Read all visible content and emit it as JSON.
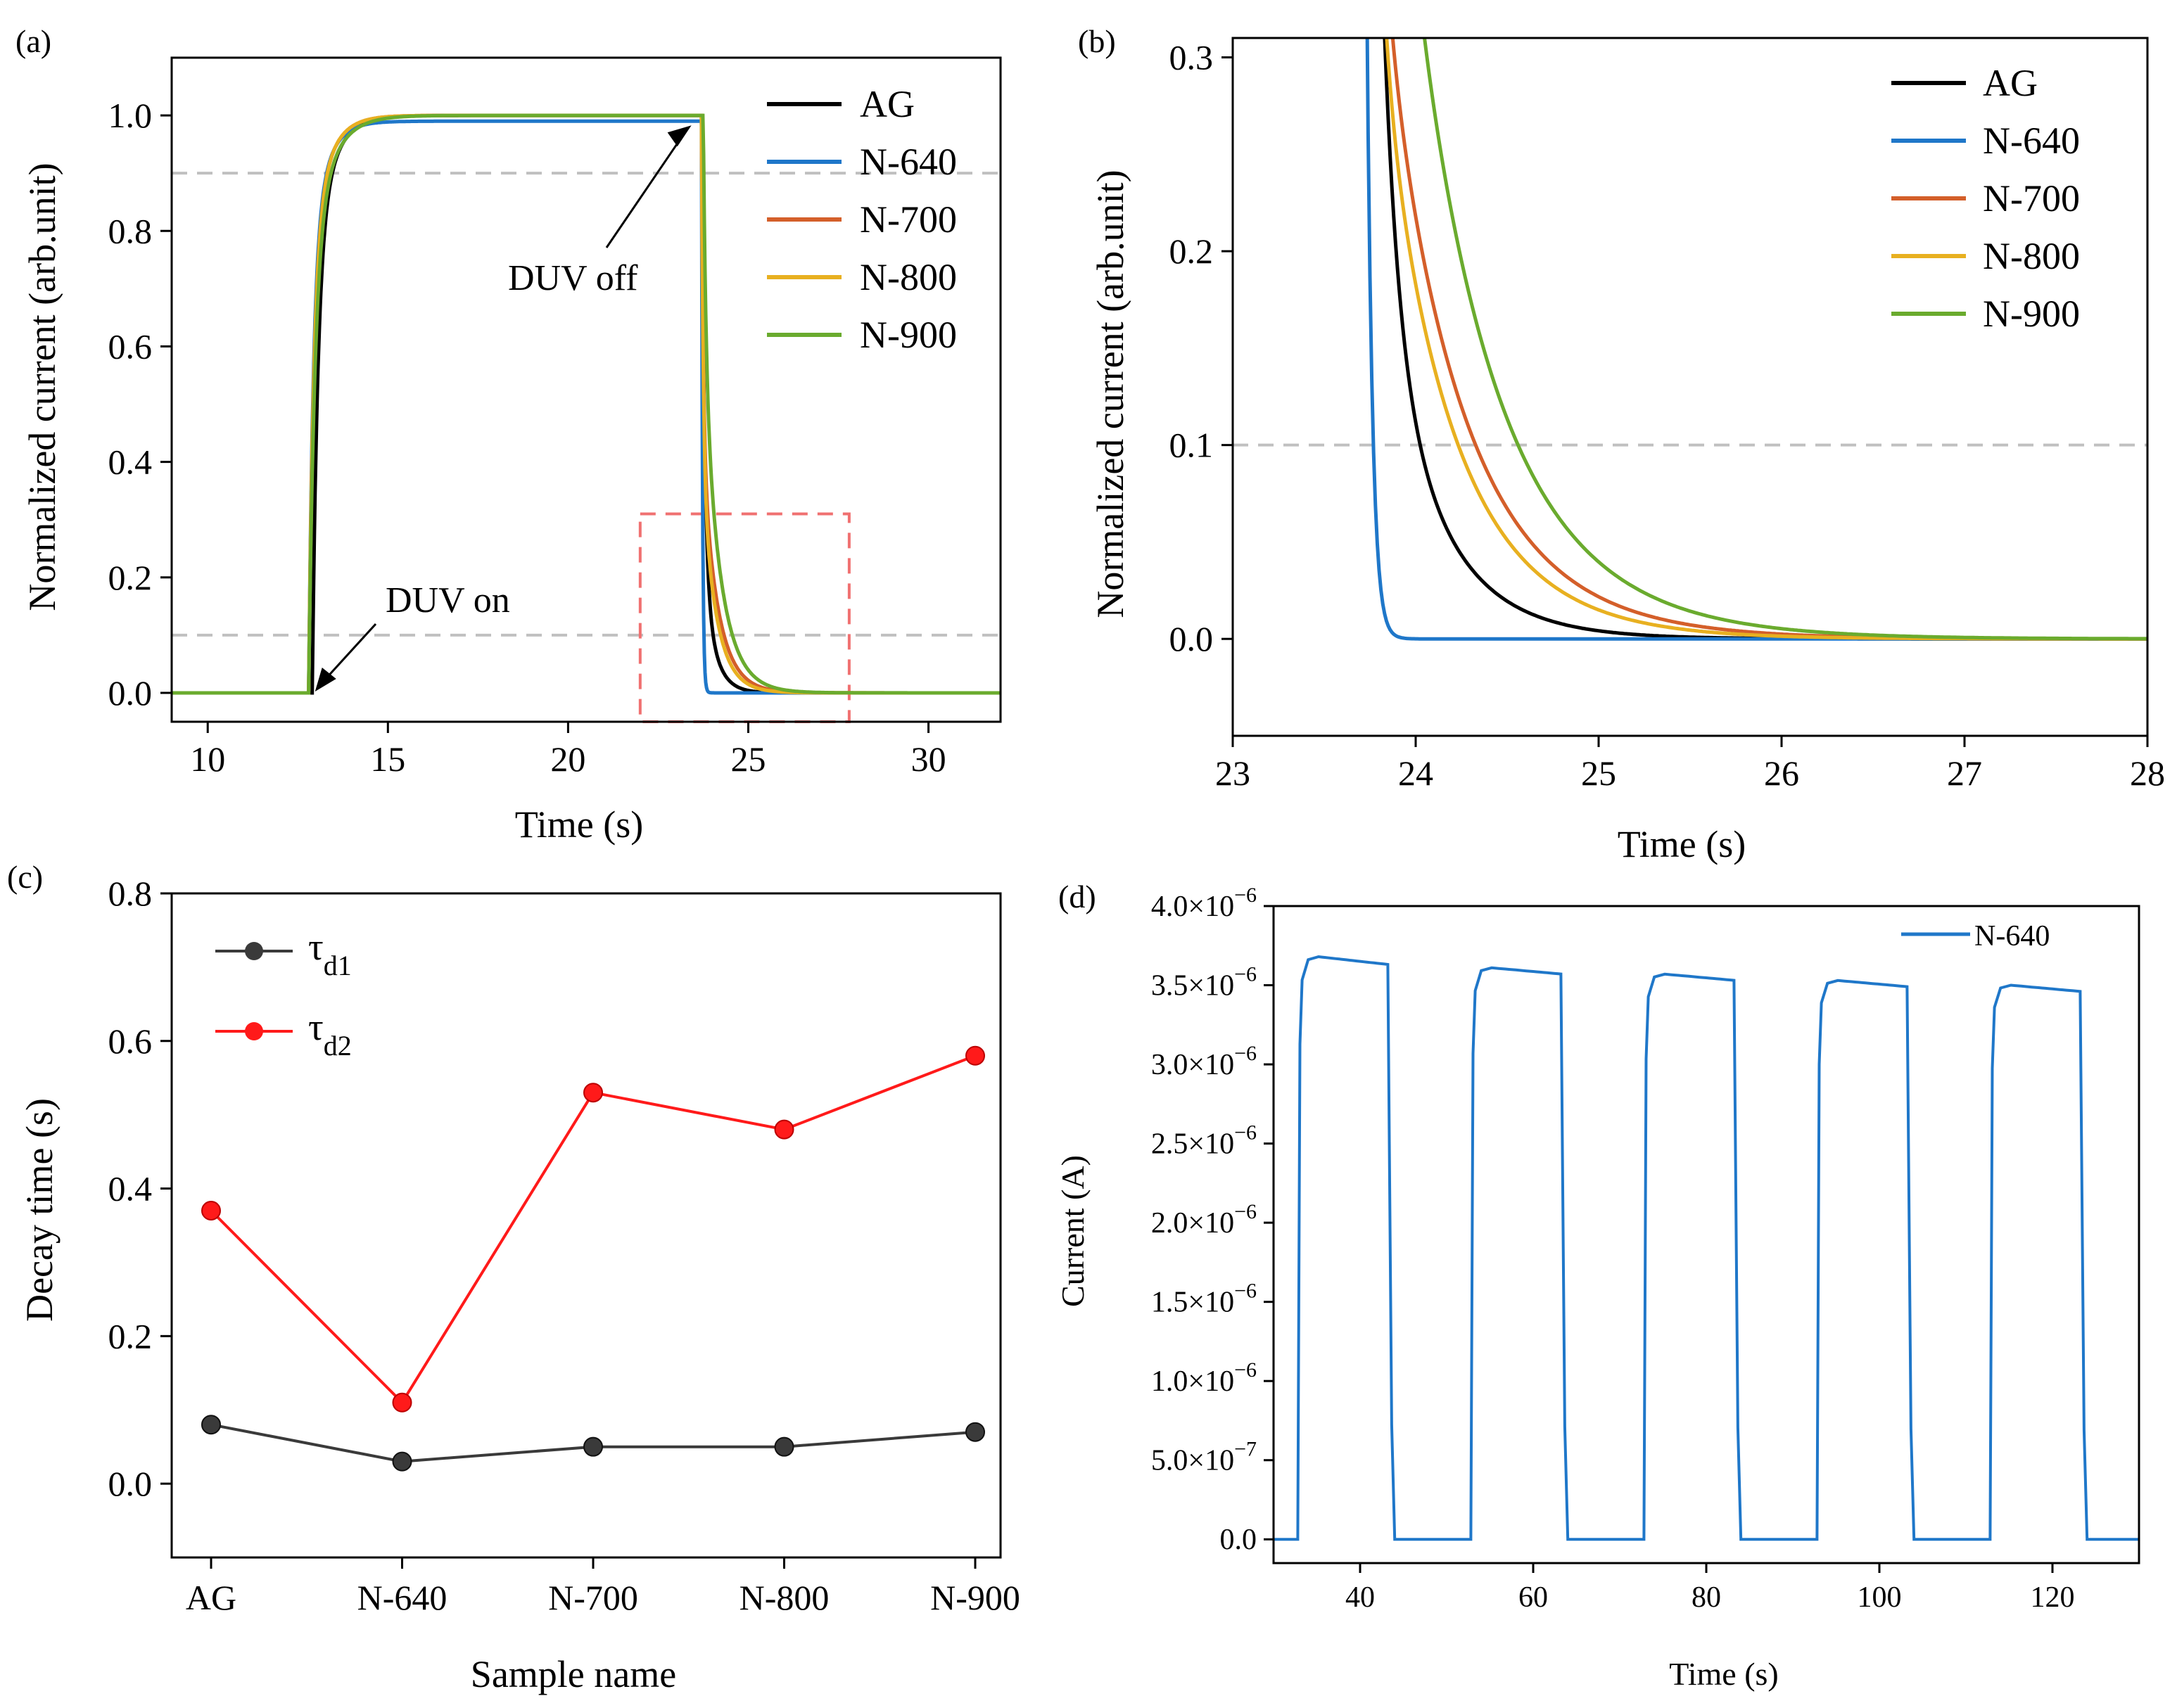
{
  "chart_data": [
    {
      "panel": "(a)",
      "type": "line",
      "xlabel": "Time (s)",
      "ylabel": "Normalized current (arb.unit)",
      "xlim": [
        9,
        32
      ],
      "ylim": [
        -0.05,
        1.1
      ],
      "xticks": [
        "10",
        "15",
        "20",
        "25",
        "30"
      ],
      "yticks": [
        "0.0",
        "0.2",
        "0.4",
        "0.6",
        "0.8",
        "1.0"
      ],
      "reference_lines": [
        0.1,
        0.9
      ],
      "annotations": [
        {
          "text": "DUV on",
          "x": 12.9,
          "y": 0.0
        },
        {
          "text": "DUV off",
          "x": 23.5,
          "y": 0.99
        }
      ],
      "highlight_box": {
        "x": [
          22,
          27.8
        ],
        "y": [
          -0.05,
          0.31
        ]
      },
      "series": [
        {
          "name": "AG",
          "color": "#000000",
          "on": 12.9,
          "off": 23.7,
          "rise": 0.45,
          "tau1": 0.08,
          "tau2": 0.37,
          "a2": 0.25,
          "end": 1.0
        },
        {
          "name": "N-640",
          "color": "#1f77c9",
          "on": 12.8,
          "off": 23.7,
          "rise": 0.38,
          "tau1": 0.03,
          "tau2": 0.11,
          "a2": 0.0,
          "end": 0.99
        },
        {
          "name": "N-700",
          "color": "#d45f2a",
          "on": 12.8,
          "off": 23.7,
          "rise": 0.42,
          "tau1": 0.05,
          "tau2": 0.53,
          "a2": 0.45,
          "end": 1.0
        },
        {
          "name": "N-800",
          "color": "#e8b020",
          "on": 12.8,
          "off": 23.7,
          "rise": 0.42,
          "tau1": 0.05,
          "tau2": 0.48,
          "a2": 0.4,
          "end": 1.0
        },
        {
          "name": "N-900",
          "color": "#6aab2e",
          "on": 12.8,
          "off": 23.75,
          "rise": 0.5,
          "tau1": 0.07,
          "tau2": 0.58,
          "a2": 0.6,
          "end": 1.0
        }
      ]
    },
    {
      "panel": "(b)",
      "type": "line",
      "xlabel": "Time (s)",
      "ylabel": "Normalized current (arb.unit)",
      "xlim": [
        23,
        28
      ],
      "ylim": [
        -0.05,
        0.31
      ],
      "xticks": [
        "23",
        "24",
        "25",
        "26",
        "27",
        "28"
      ],
      "yticks": [
        "0.0",
        "0.1",
        "0.2",
        "0.3"
      ],
      "reference_lines": [
        0.1
      ],
      "series_ref": "same five decay curves as panel (a)"
    },
    {
      "panel": "(c)",
      "type": "line",
      "xlabel": "Sample name",
      "ylabel": "Decay time (s)",
      "categories": [
        "AG",
        "N-640",
        "N-700",
        "N-800",
        "N-900"
      ],
      "ylim": [
        -0.1,
        0.8
      ],
      "yticks": [
        "0.0",
        "0.2",
        "0.4",
        "0.6",
        "0.8"
      ],
      "series": [
        {
          "name": "τ",
          "sub": "d1",
          "color": "#3a3a3a",
          "values": [
            0.08,
            0.03,
            0.05,
            0.05,
            0.07
          ]
        },
        {
          "name": "τ",
          "sub": "d2",
          "color": "#ff1a1a",
          "values": [
            0.37,
            0.11,
            0.53,
            0.48,
            0.58
          ]
        }
      ]
    },
    {
      "panel": "(d)",
      "type": "line",
      "xlabel": "Time (s)",
      "ylabel": "Current (A)",
      "xlim": [
        30,
        130
      ],
      "ylim": [
        -1.5e-07,
        4e-06
      ],
      "xticks": [
        "40",
        "60",
        "80",
        "100",
        "120"
      ],
      "yticks": [
        {
          "v": 0.0,
          "m": "0.0",
          "e": ""
        },
        {
          "v": 5e-07,
          "m": "5.0×10",
          "e": "−7"
        },
        {
          "v": 1e-06,
          "m": "1.0×10",
          "e": "−6"
        },
        {
          "v": 1.5e-06,
          "m": "1.5×10",
          "e": "−6"
        },
        {
          "v": 2e-06,
          "m": "2.0×10",
          "e": "−6"
        },
        {
          "v": 2.5e-06,
          "m": "2.5×10",
          "e": "−6"
        },
        {
          "v": 3e-06,
          "m": "3.0×10",
          "e": "−6"
        },
        {
          "v": 3.5e-06,
          "m": "3.5×10",
          "e": "−6"
        },
        {
          "v": 4e-06,
          "m": "4.0×10",
          "e": "−6"
        }
      ],
      "series": [
        {
          "name": "N-640",
          "color": "#1f77c9",
          "cycles": [
            {
              "on": 32.8,
              "off": 43.4,
              "peak": 3.68e-06,
              "end": 3.63e-06
            },
            {
              "on": 52.8,
              "off": 63.4,
              "peak": 3.61e-06,
              "end": 3.57e-06
            },
            {
              "on": 72.8,
              "off": 83.4,
              "peak": 3.57e-06,
              "end": 3.53e-06
            },
            {
              "on": 92.8,
              "off": 103.4,
              "peak": 3.53e-06,
              "end": 3.49e-06
            },
            {
              "on": 112.8,
              "off": 123.4,
              "peak": 3.5e-06,
              "end": 3.46e-06
            }
          ]
        }
      ]
    }
  ]
}
